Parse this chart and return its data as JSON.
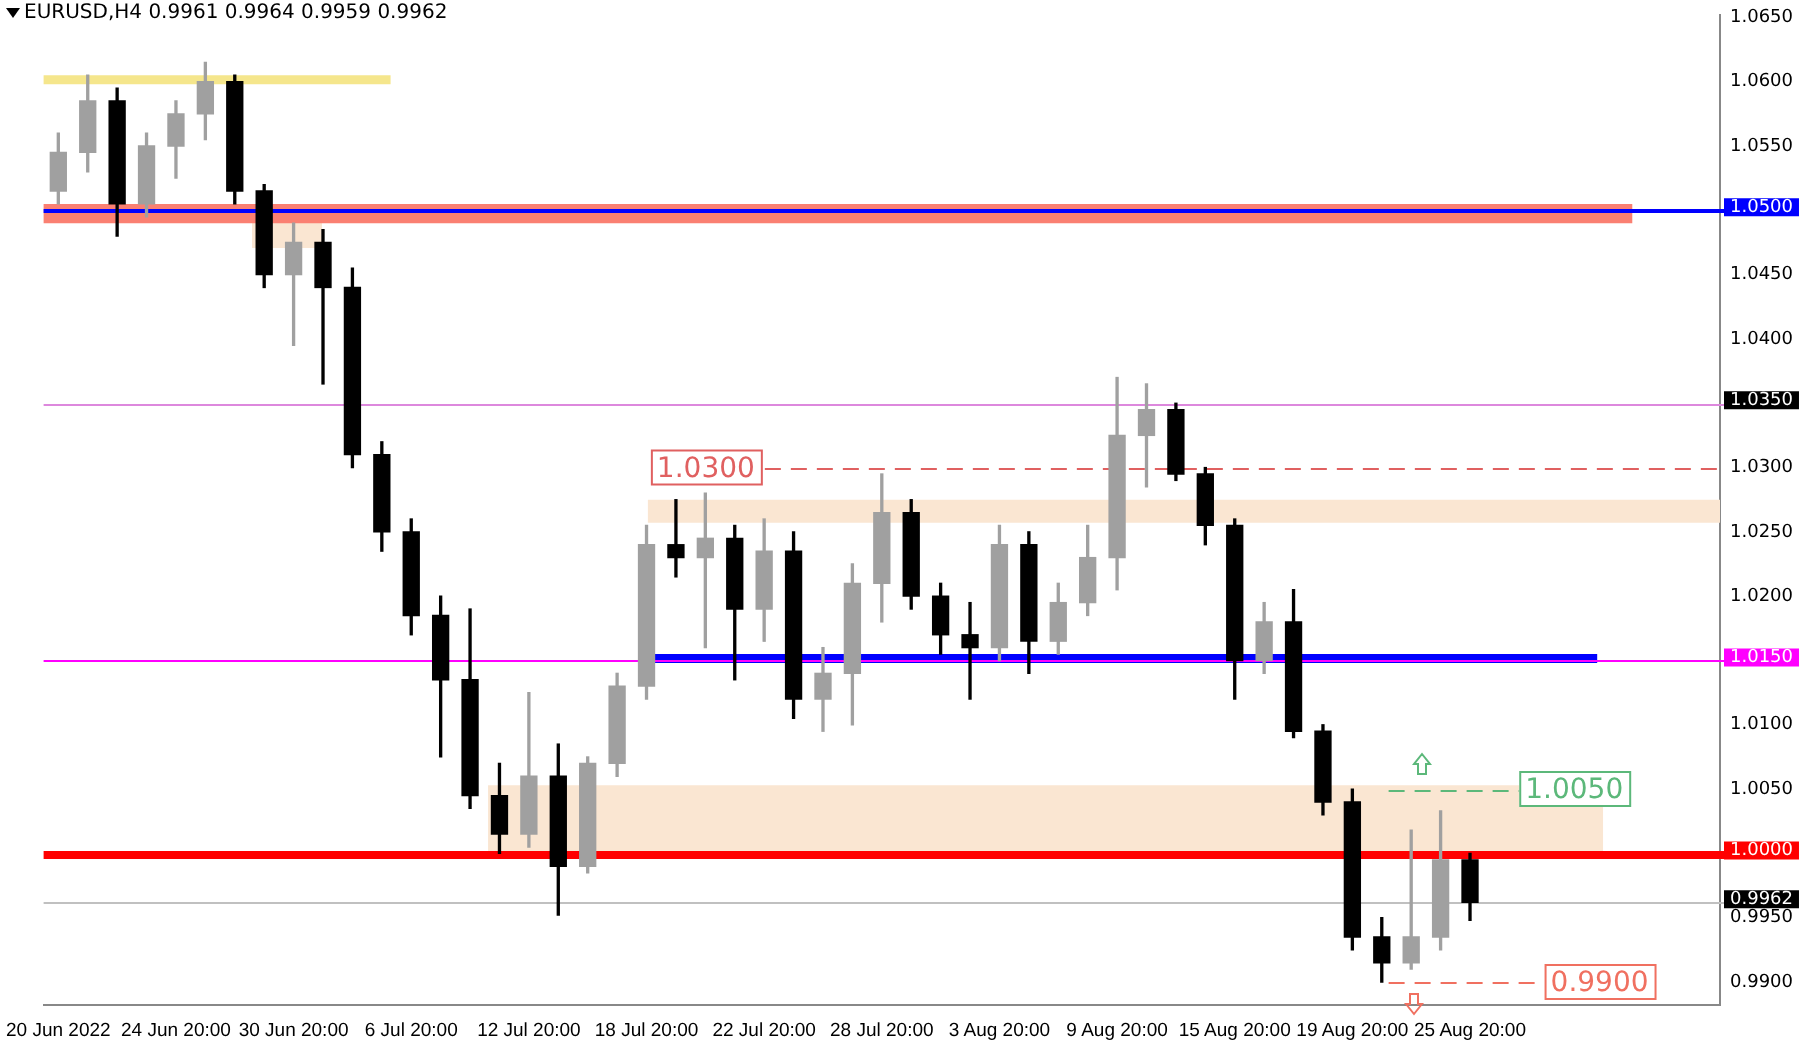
{
  "chart_data": {
    "type": "candlestick",
    "title": "EURUSD,H4  0.9961 0.9964 0.9959 0.9962",
    "categories": [
      "20 Jun 2022",
      null,
      null,
      null,
      "24 Jun 20:00",
      null,
      null,
      null,
      "30 Jun 20:00",
      null,
      null,
      null,
      "6 Jul 20:00",
      null,
      null,
      null,
      "12 Jul 20:00",
      null,
      null,
      null,
      "18 Jul 20:00",
      null,
      null,
      null,
      "22 Jul 20:00",
      null,
      null,
      null,
      "28 Jul 20:00",
      null,
      null,
      null,
      "3 Aug 20:00",
      null,
      null,
      null,
      "9 Aug 20:00",
      null,
      null,
      null,
      "15 Aug 20:00",
      null,
      null,
      null,
      "19 Aug 20:00",
      null,
      null,
      null,
      "25 Aug 20:00",
      null,
      null,
      null,
      null,
      null,
      null,
      null,
      null
    ],
    "ohlc": [
      [
        1.0515,
        1.056,
        1.0505,
        1.0545
      ],
      [
        1.0545,
        1.0605,
        1.053,
        1.0585
      ],
      [
        1.0585,
        1.0595,
        1.048,
        1.0505
      ],
      [
        1.0505,
        1.056,
        1.0495,
        1.055
      ],
      [
        1.055,
        1.0585,
        1.0525,
        1.0575
      ],
      [
        1.0575,
        1.0615,
        1.0555,
        1.06
      ],
      [
        1.06,
        1.0605,
        1.0505,
        1.0515
      ],
      [
        1.0515,
        1.052,
        1.044,
        1.045
      ],
      [
        1.045,
        1.049,
        1.0395,
        1.0475
      ],
      [
        1.0475,
        1.0485,
        1.0365,
        1.044
      ],
      [
        1.044,
        1.0455,
        1.03,
        1.031
      ],
      [
        1.031,
        1.032,
        1.0235,
        1.025
      ],
      [
        1.025,
        1.026,
        1.017,
        1.0185
      ],
      [
        1.0185,
        1.02,
        1.0075,
        1.0135
      ],
      [
        1.0135,
        1.019,
        1.0035,
        1.0045
      ],
      [
        1.0045,
        1.007,
        1.0,
        1.0015
      ],
      [
        1.0015,
        1.0125,
        1.0005,
        1.006
      ],
      [
        1.006,
        1.0085,
        0.9952,
        0.999
      ],
      [
        0.999,
        1.0075,
        0.9985,
        1.007
      ],
      [
        1.007,
        1.014,
        1.006,
        1.013
      ],
      [
        1.013,
        1.0255,
        1.012,
        1.024
      ],
      [
        1.024,
        1.0275,
        1.0215,
        1.023
      ],
      [
        1.023,
        1.028,
        1.016,
        1.0245
      ],
      [
        1.0245,
        1.0255,
        1.0135,
        1.019
      ],
      [
        1.019,
        1.026,
        1.0165,
        1.0235
      ],
      [
        1.0235,
        1.025,
        1.0105,
        1.012
      ],
      [
        1.012,
        1.016,
        1.0095,
        1.014
      ],
      [
        1.014,
        1.0225,
        1.01,
        1.021
      ],
      [
        1.021,
        1.0295,
        1.018,
        1.0265
      ],
      [
        1.0265,
        1.0275,
        1.019,
        1.02
      ],
      [
        1.02,
        1.021,
        1.0155,
        1.017
      ],
      [
        1.017,
        1.0195,
        1.012,
        1.016
      ],
      [
        1.016,
        1.0255,
        1.015,
        1.024
      ],
      [
        1.024,
        1.025,
        1.014,
        1.0165
      ],
      [
        1.0165,
        1.021,
        1.0155,
        1.0195
      ],
      [
        1.0195,
        1.0255,
        1.0185,
        1.023
      ],
      [
        1.023,
        1.037,
        1.0205,
        1.0325
      ],
      [
        1.0325,
        1.0365,
        1.0285,
        1.0345
      ],
      [
        1.0345,
        1.035,
        1.029,
        1.0295
      ],
      [
        1.0295,
        1.03,
        1.024,
        1.0255
      ],
      [
        1.0255,
        1.026,
        1.012,
        1.015
      ],
      [
        1.015,
        1.0195,
        1.014,
        1.018
      ],
      [
        1.018,
        1.0205,
        1.009,
        1.0095
      ],
      [
        1.0095,
        1.01,
        1.003,
        1.004
      ],
      [
        1.004,
        1.005,
        0.9925,
        0.9935
      ],
      [
        0.9935,
        0.995,
        0.99,
        0.9915
      ],
      [
        0.9915,
        1.0018,
        0.991,
        0.9935
      ],
      [
        0.9935,
        1.0033,
        0.9925,
        0.9995
      ],
      [
        0.9995,
        1.0,
        0.9948,
        0.9962
      ],
      null,
      null,
      null,
      null,
      null,
      null,
      null,
      null
    ],
    "ylim": [
      0.9882,
      1.0652
    ],
    "yticks": [
      {
        "value": 0.99,
        "label": "0.9900"
      },
      {
        "value": 0.995,
        "label": "0.9950"
      },
      {
        "value": 1.005,
        "label": "1.0050"
      },
      {
        "value": 1.01,
        "label": "1.0100"
      },
      {
        "value": 1.02,
        "label": "1.0200"
      },
      {
        "value": 1.025,
        "label": "1.0250"
      },
      {
        "value": 1.03,
        "label": "1.0300"
      },
      {
        "value": 1.04,
        "label": "1.0400"
      },
      {
        "value": 1.045,
        "label": "1.0450"
      },
      {
        "value": 1.055,
        "label": "1.0550"
      },
      {
        "value": 1.06,
        "label": "1.0600"
      },
      {
        "value": 1.065,
        "label": "1.0650"
      }
    ],
    "bands": [
      {
        "axis": "y",
        "from": 1.0598,
        "to": 1.0605,
        "color": "#f5e68c"
      },
      {
        "axis": "y",
        "from": 1.049,
        "to": 1.0505,
        "color": "#fa8072"
      },
      {
        "axis": "y",
        "from": 1.0257,
        "to": 1.0275,
        "color": "#fae6d2"
      },
      {
        "axis": "y",
        "from": 1.0148,
        "to": 1.0155,
        "color": "#0000ff"
      },
      {
        "axis": "y",
        "from": 1.0,
        "to": 1.0053,
        "color": "#fae6d2"
      }
    ],
    "ref_lines": [
      {
        "axis": "y",
        "value": 1.05,
        "label": "1.0500",
        "color": "#0000ff"
      },
      {
        "axis": "y",
        "value": 1.035,
        "label": "1.0350",
        "color": "#dd88dd"
      },
      {
        "axis": "y",
        "value": 1.03,
        "label": "1.0300",
        "color": "#e06060",
        "line_style": "dashed"
      },
      {
        "axis": "y",
        "value": 1.015,
        "label": "1.0150",
        "color": "#ff00ff"
      },
      {
        "axis": "y",
        "value": 1.005,
        "label": "1.0050",
        "color": "#5cb87a",
        "line_style": "dashed"
      },
      {
        "axis": "y",
        "value": 1.0,
        "label": "1.0000",
        "color": "#ff0000"
      },
      {
        "axis": "y",
        "value": 0.9962,
        "label": "0.9962",
        "color": "#c0c0c0"
      },
      {
        "axis": "y",
        "value": 0.99,
        "label": "0.9900",
        "color": "#f07060",
        "line_style": "dashed"
      }
    ],
    "grid": false,
    "legend": false
  }
}
